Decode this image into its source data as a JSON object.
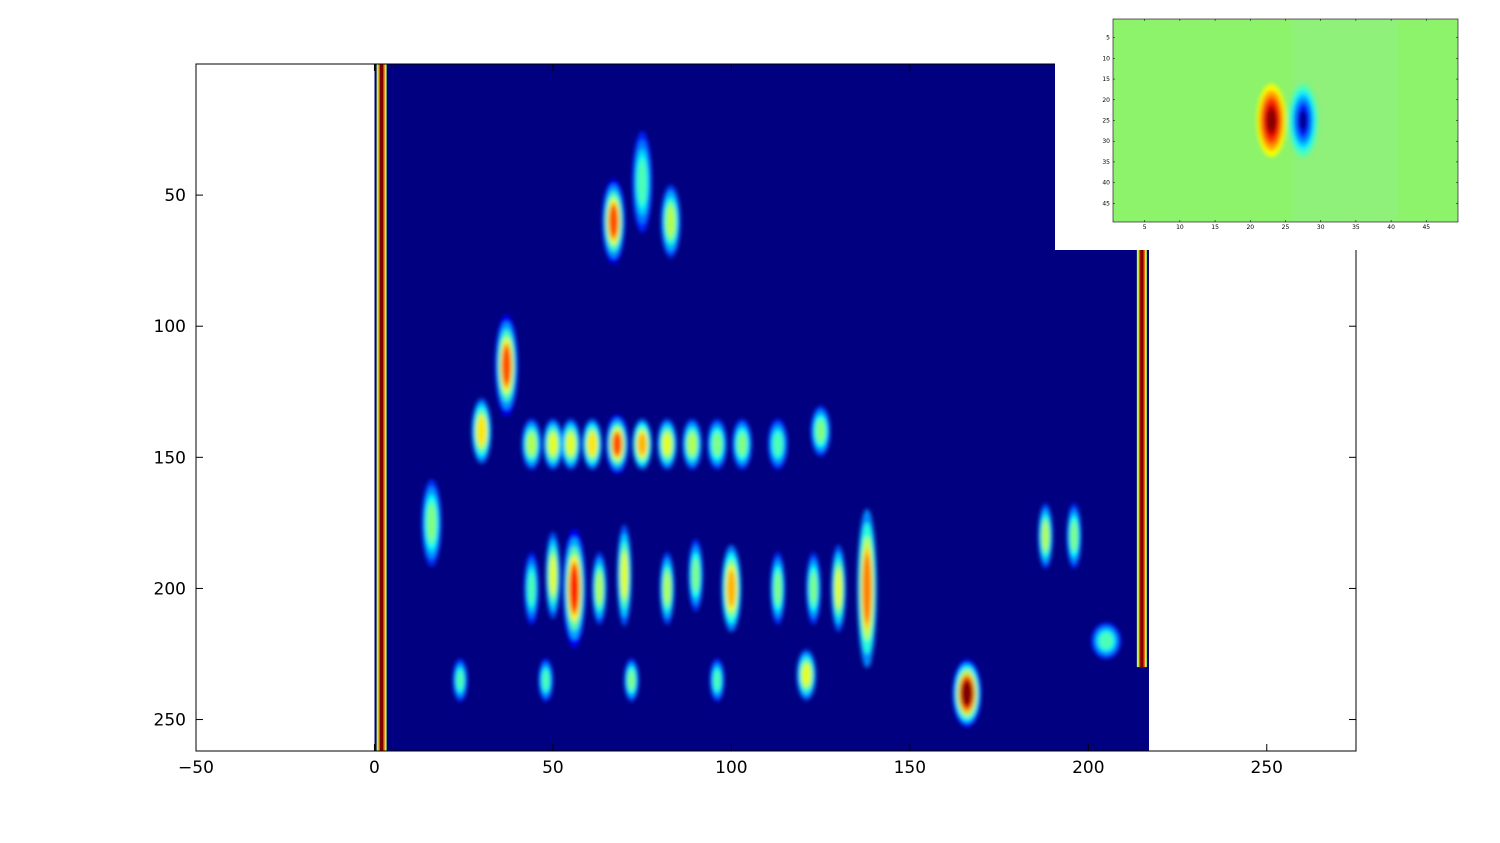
{
  "chart_data": [
    {
      "type": "heatmap",
      "title": "",
      "xlabel": "",
      "ylabel": "",
      "colormap": "jet",
      "xlim": [
        -50,
        275
      ],
      "ylim": [
        262,
        0
      ],
      "y_reversed": true,
      "grid": false,
      "x_ticks": [
        -50,
        0,
        50,
        100,
        150,
        200,
        250
      ],
      "y_ticks": [
        50,
        100,
        150,
        200,
        250
      ],
      "image_extent": {
        "x": [
          0,
          217
        ],
        "y": [
          0,
          262
        ]
      },
      "background_value": 0,
      "edge_lines": [
        {
          "x": 2,
          "y_from": 0,
          "y_to": 262,
          "value": 1.0
        },
        {
          "x": 215,
          "y_from": 70,
          "y_to": 230,
          "value": 1.0
        }
      ],
      "features": [
        {
          "x": 67,
          "y": 60,
          "w": 2,
          "h": 10,
          "v": 0.8
        },
        {
          "x": 83,
          "y": 60,
          "w": 2,
          "h": 10,
          "v": 0.55
        },
        {
          "x": 75,
          "y": 45,
          "w": 2,
          "h": 14,
          "v": 0.45
        },
        {
          "x": 37,
          "y": 115,
          "w": 2,
          "h": 12,
          "v": 0.8
        },
        {
          "x": 30,
          "y": 140,
          "w": 2,
          "h": 9,
          "v": 0.65
        },
        {
          "x": 44,
          "y": 145,
          "w": 2,
          "h": 7,
          "v": 0.55
        },
        {
          "x": 50,
          "y": 145,
          "w": 2,
          "h": 7,
          "v": 0.6
        },
        {
          "x": 55,
          "y": 145,
          "w": 2,
          "h": 7,
          "v": 0.6
        },
        {
          "x": 61,
          "y": 145,
          "w": 2,
          "h": 7,
          "v": 0.65
        },
        {
          "x": 68,
          "y": 145,
          "w": 2,
          "h": 7,
          "v": 0.8
        },
        {
          "x": 75,
          "y": 145,
          "w": 2,
          "h": 7,
          "v": 0.7
        },
        {
          "x": 82,
          "y": 145,
          "w": 2,
          "h": 7,
          "v": 0.6
        },
        {
          "x": 89,
          "y": 145,
          "w": 2,
          "h": 7,
          "v": 0.55
        },
        {
          "x": 96,
          "y": 145,
          "w": 2,
          "h": 7,
          "v": 0.5
        },
        {
          "x": 103,
          "y": 145,
          "w": 2,
          "h": 7,
          "v": 0.5
        },
        {
          "x": 113,
          "y": 145,
          "w": 2,
          "h": 7,
          "v": 0.45
        },
        {
          "x": 125,
          "y": 140,
          "w": 2,
          "h": 7,
          "v": 0.5
        },
        {
          "x": 16,
          "y": 175,
          "w": 2,
          "h": 12,
          "v": 0.5
        },
        {
          "x": 56,
          "y": 200,
          "w": 2,
          "h": 14,
          "v": 0.85
        },
        {
          "x": 50,
          "y": 195,
          "w": 1.5,
          "h": 12,
          "v": 0.6
        },
        {
          "x": 44,
          "y": 200,
          "w": 1.5,
          "h": 10,
          "v": 0.45
        },
        {
          "x": 63,
          "y": 200,
          "w": 1.5,
          "h": 10,
          "v": 0.55
        },
        {
          "x": 70,
          "y": 195,
          "w": 1.5,
          "h": 14,
          "v": 0.6
        },
        {
          "x": 82,
          "y": 200,
          "w": 1.5,
          "h": 10,
          "v": 0.55
        },
        {
          "x": 90,
          "y": 195,
          "w": 1.5,
          "h": 10,
          "v": 0.5
        },
        {
          "x": 100,
          "y": 200,
          "w": 2,
          "h": 12,
          "v": 0.7
        },
        {
          "x": 113,
          "y": 200,
          "w": 1.5,
          "h": 10,
          "v": 0.5
        },
        {
          "x": 123,
          "y": 200,
          "w": 1.5,
          "h": 10,
          "v": 0.5
        },
        {
          "x": 130,
          "y": 200,
          "w": 1.5,
          "h": 12,
          "v": 0.6
        },
        {
          "x": 138,
          "y": 200,
          "w": 2,
          "h": 22,
          "v": 0.75
        },
        {
          "x": 24,
          "y": 235,
          "w": 1.5,
          "h": 6,
          "v": 0.45
        },
        {
          "x": 48,
          "y": 235,
          "w": 1.5,
          "h": 6,
          "v": 0.45
        },
        {
          "x": 72,
          "y": 235,
          "w": 1.5,
          "h": 6,
          "v": 0.5
        },
        {
          "x": 96,
          "y": 235,
          "w": 1.5,
          "h": 6,
          "v": 0.45
        },
        {
          "x": 121,
          "y": 233,
          "w": 2,
          "h": 7,
          "v": 0.6
        },
        {
          "x": 166,
          "y": 240,
          "w": 2.5,
          "h": 8,
          "v": 1.0
        },
        {
          "x": 188,
          "y": 180,
          "w": 1.5,
          "h": 9,
          "v": 0.55
        },
        {
          "x": 196,
          "y": 180,
          "w": 1.5,
          "h": 9,
          "v": 0.5
        },
        {
          "x": 205,
          "y": 220,
          "w": 3,
          "h": 5,
          "v": 0.45
        }
      ]
    },
    {
      "type": "heatmap",
      "title": "",
      "xlabel": "",
      "ylabel": "",
      "colormap": "jet",
      "xlim": [
        0.5,
        49.5
      ],
      "ylim": [
        49.5,
        0.5
      ],
      "y_reversed": true,
      "grid": false,
      "x_ticks": [
        5,
        10,
        15,
        20,
        25,
        30,
        35,
        40,
        45
      ],
      "y_ticks": [
        5,
        10,
        15,
        20,
        25,
        30,
        35,
        40,
        45
      ],
      "background_value": 0.55,
      "features": [
        {
          "x": 23,
          "y": 25,
          "w": 1.3,
          "h": 5.5,
          "v": 1.0
        },
        {
          "x": 27.5,
          "y": 25,
          "w": 1.3,
          "h": 5.5,
          "v": 0.0
        }
      ]
    }
  ]
}
